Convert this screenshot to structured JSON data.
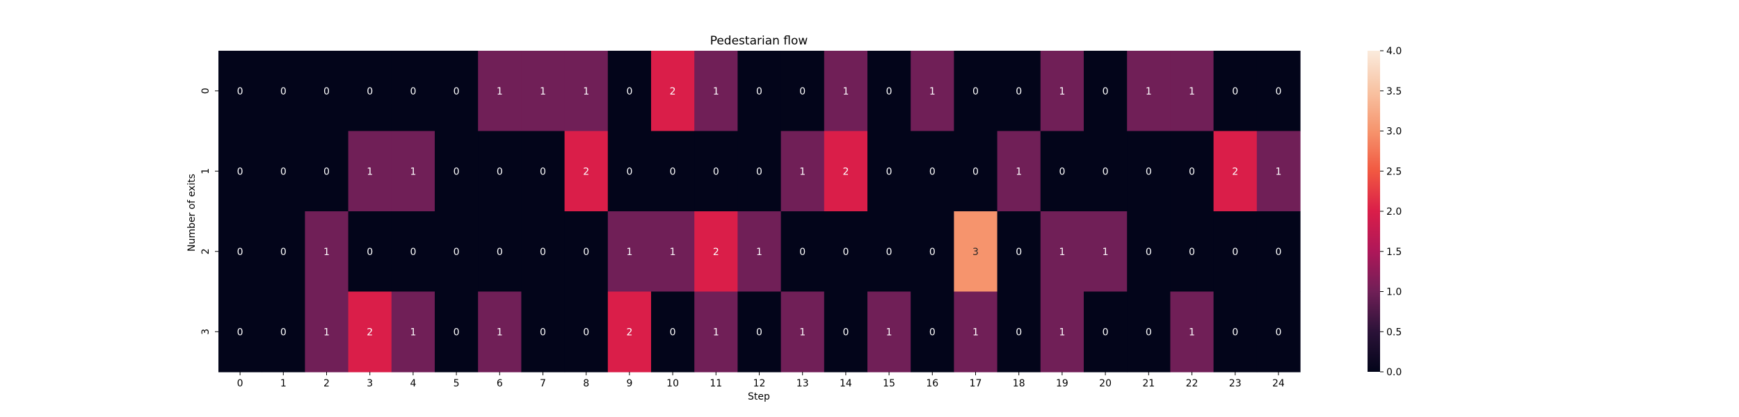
{
  "chart_data": {
    "type": "heatmap",
    "title": "Pedestarian flow",
    "xlabel": "Step",
    "ylabel": "Number of exits",
    "x_categories": [
      "0",
      "1",
      "2",
      "3",
      "4",
      "5",
      "6",
      "7",
      "8",
      "9",
      "10",
      "11",
      "12",
      "13",
      "14",
      "15",
      "16",
      "17",
      "18",
      "19",
      "20",
      "21",
      "22",
      "23",
      "24"
    ],
    "y_categories": [
      "0",
      "1",
      "2",
      "3"
    ],
    "values": [
      [
        0,
        0,
        0,
        0,
        0,
        0,
        1,
        1,
        1,
        0,
        2,
        1,
        0,
        0,
        1,
        0,
        1,
        0,
        0,
        1,
        0,
        1,
        1,
        0,
        0
      ],
      [
        0,
        0,
        0,
        1,
        1,
        0,
        0,
        0,
        2,
        0,
        0,
        0,
        0,
        1,
        2,
        0,
        0,
        0,
        1,
        0,
        0,
        0,
        0,
        2,
        1
      ],
      [
        0,
        0,
        1,
        0,
        0,
        0,
        0,
        0,
        0,
        1,
        1,
        2,
        1,
        0,
        0,
        0,
        0,
        3,
        0,
        1,
        1,
        0,
        0,
        0,
        0
      ],
      [
        0,
        0,
        1,
        2,
        1,
        0,
        1,
        0,
        0,
        2,
        0,
        1,
        0,
        1,
        0,
        1,
        0,
        1,
        0,
        1,
        0,
        0,
        1,
        0,
        0
      ]
    ],
    "colorbar": {
      "range": [
        0,
        4
      ],
      "ticks": [
        "0.0",
        "0.5",
        "1.0",
        "1.5",
        "2.0",
        "2.5",
        "3.0",
        "3.5",
        "4.0"
      ],
      "colormap": "rocket"
    },
    "colors": {
      "0": "#03051a",
      "1": "#701f57",
      "2": "#da1e49",
      "3": "#f6946d",
      "4": "#faebdd"
    }
  }
}
